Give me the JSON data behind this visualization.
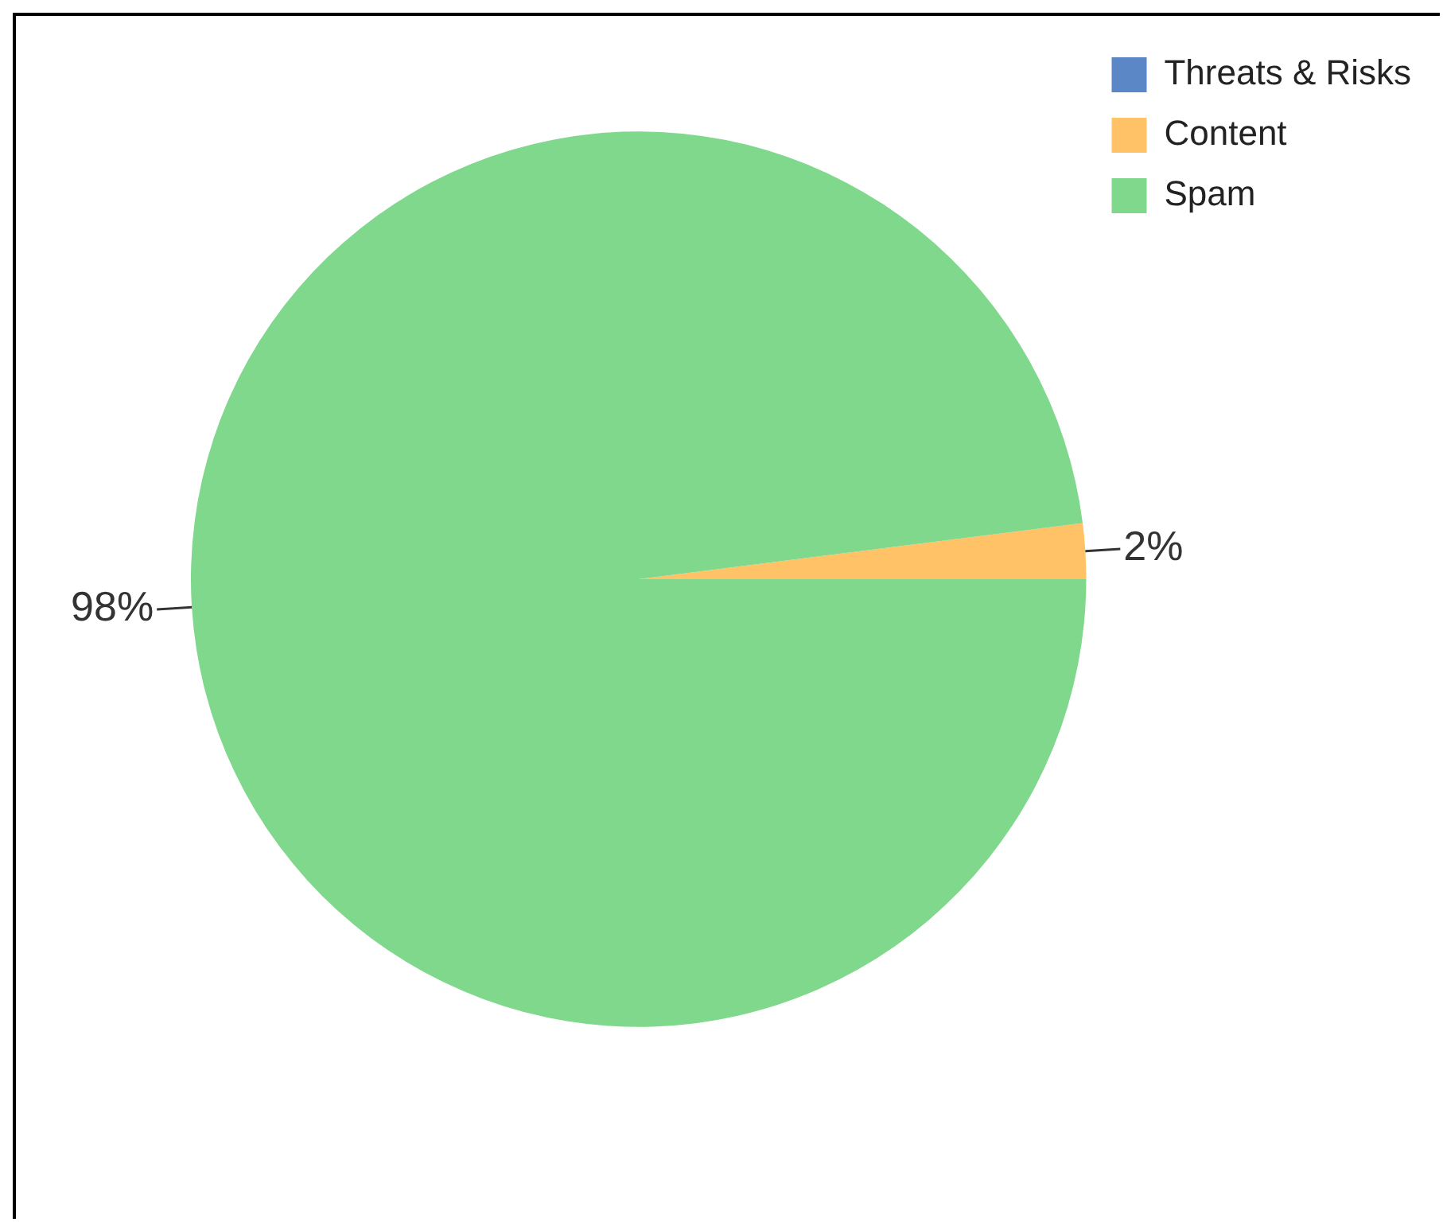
{
  "chart_data": {
    "type": "pie",
    "categories": [
      "Threats & Risks",
      "Content",
      "Spam"
    ],
    "values": [
      0,
      2,
      98
    ],
    "colors": [
      "#5b87c6",
      "#ffc266",
      "#7fd88c"
    ],
    "value_labels": [
      null,
      "2%",
      "98%"
    ],
    "legend": "top right"
  }
}
